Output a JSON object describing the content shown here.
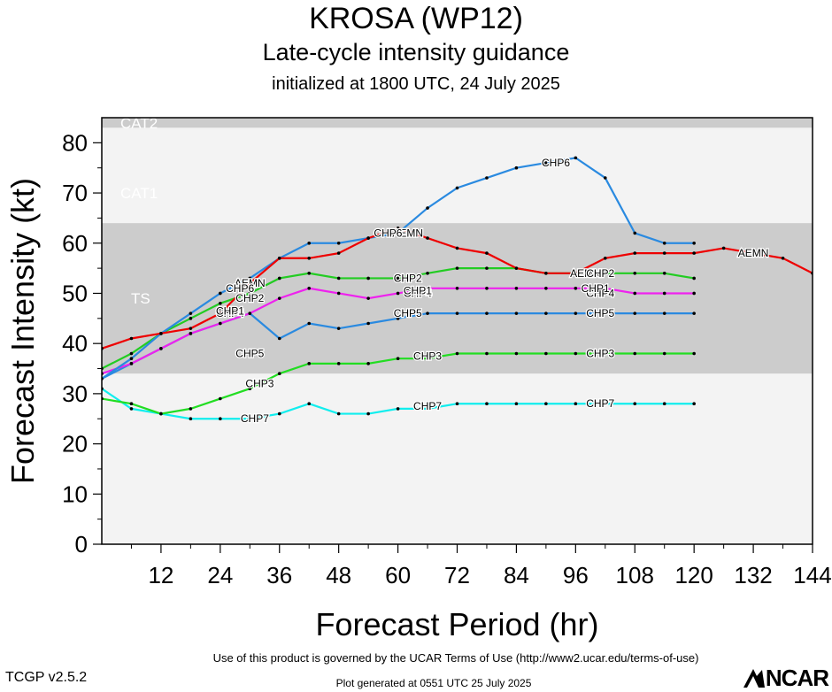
{
  "header": {
    "title": "KROSA (WP12)",
    "subtitle": "Late-cycle intensity guidance",
    "initialized": "initialized at 1800 UTC, 24 July 2025"
  },
  "footer": {
    "terms": "Use of this product is governed by the UCAR Terms of Use (http://www2.ucar.edu/terms-of-use)",
    "version": "TCGP v2.5.2",
    "generated": "Plot generated at 0551 UTC   25 July 2025",
    "logo": "NCAR"
  },
  "colors": {
    "AEMN": "#ee0000",
    "CHP6": "#2a8ae0",
    "CHP2": "#22cc22",
    "CHP4": "#ee22ee",
    "CHP5": "#2a8ae0",
    "CHP3": "#22dd22",
    "CHP7": "#11eeee",
    "band_light": "#f3f3f3",
    "band_dark": "#cccccc"
  },
  "chart_data": {
    "type": "line",
    "xlabel": "Forecast Period (hr)",
    "ylabel": "Forecast Intensity (kt)",
    "xlim": [
      0,
      144
    ],
    "ylim": [
      0,
      85
    ],
    "xticks": [
      12,
      24,
      36,
      48,
      60,
      72,
      84,
      96,
      108,
      120,
      132,
      144
    ],
    "yticks": [
      0,
      10,
      20,
      30,
      40,
      50,
      60,
      70,
      80
    ],
    "bands": [
      {
        "label": "",
        "from": 0,
        "to": 34,
        "shade": "light"
      },
      {
        "label": "TS",
        "from": 34,
        "to": 64,
        "shade": "dark"
      },
      {
        "label": "CAT1",
        "from": 64,
        "to": 83,
        "shade": "light"
      },
      {
        "label": "CAT2",
        "from": 83,
        "to": 85,
        "shade": "dark"
      }
    ],
    "series": [
      {
        "name": "AEMN",
        "x": [
          0,
          6,
          12,
          18,
          24,
          30,
          36,
          42,
          48,
          54,
          60,
          66,
          72,
          78,
          84,
          90,
          96,
          102,
          108,
          114,
          120,
          126,
          132,
          138,
          144
        ],
        "y": [
          39,
          41,
          42,
          43,
          46,
          52,
          57,
          57,
          58,
          61,
          63,
          61,
          59,
          58,
          55,
          54,
          54,
          57,
          58,
          58,
          58,
          59,
          58,
          57,
          54
        ],
        "labels": [
          [
            30,
            52
          ],
          [
            62,
            62
          ],
          [
            98,
            54
          ],
          [
            132,
            58
          ]
        ]
      },
      {
        "name": "CHP6",
        "x": [
          0,
          6,
          12,
          18,
          24,
          30,
          36,
          42,
          48,
          54,
          60,
          66,
          72,
          78,
          84,
          90,
          96,
          102,
          108,
          114,
          120
        ],
        "y": [
          33,
          37,
          42,
          46,
          50,
          53,
          57,
          60,
          60,
          61,
          62,
          67,
          71,
          73,
          75,
          76,
          77,
          73,
          62,
          60,
          60
        ],
        "labels": [
          [
            28,
            51
          ],
          [
            58,
            62
          ],
          [
            92,
            76
          ]
        ]
      },
      {
        "name": "CHP2",
        "x": [
          0,
          6,
          12,
          18,
          24,
          30,
          36,
          42,
          48,
          54,
          60,
          66,
          72,
          78,
          84,
          90,
          96,
          102,
          108,
          114,
          120
        ],
        "y": [
          35,
          38,
          42,
          45,
          48,
          50,
          53,
          54,
          53,
          53,
          53,
          54,
          55,
          55,
          55,
          54,
          54,
          54,
          54,
          54,
          53
        ],
        "labels": [
          [
            30,
            49
          ],
          [
            62,
            53
          ],
          [
            101,
            54
          ]
        ]
      },
      {
        "name": "CHP4",
        "x": [
          0,
          6,
          12,
          18,
          24,
          30,
          36,
          42,
          48,
          54,
          60,
          66,
          72,
          78,
          84,
          90,
          96,
          102,
          108,
          114,
          120
        ],
        "y": [
          34,
          36,
          39,
          42,
          44,
          46,
          49,
          51,
          50,
          49,
          50,
          51,
          51,
          51,
          51,
          51,
          51,
          51,
          50,
          50,
          50
        ],
        "labels": [
          [
            26,
            46
          ],
          [
            64,
            50
          ],
          [
            101,
            50
          ]
        ]
      },
      {
        "name": "CHP1",
        "x": [],
        "y": [],
        "labels": [
          [
            26,
            46.5
          ],
          [
            64,
            50.5
          ],
          [
            100,
            51
          ]
        ]
      },
      {
        "name": "CHP5",
        "x": [
          0,
          6,
          12,
          18,
          24,
          30,
          36,
          42,
          48,
          54,
          60,
          66,
          72,
          78,
          84,
          90,
          96,
          102,
          108,
          114,
          120
        ],
        "y": [
          33,
          36,
          39,
          42,
          44,
          46,
          41,
          44,
          43,
          44,
          45,
          46,
          46,
          46,
          46,
          46,
          46,
          46,
          46,
          46,
          46
        ],
        "labels": [
          [
            30,
            38
          ],
          [
            62,
            46
          ],
          [
            101,
            46
          ]
        ]
      },
      {
        "name": "CHP3",
        "x": [
          0,
          6,
          12,
          18,
          24,
          30,
          36,
          42,
          48,
          54,
          60,
          66,
          72,
          78,
          84,
          90,
          96,
          102,
          108,
          114,
          120
        ],
        "y": [
          29,
          28,
          26,
          27,
          29,
          31,
          34,
          36,
          36,
          36,
          37,
          37,
          38,
          38,
          38,
          38,
          38,
          38,
          38,
          38,
          38
        ],
        "labels": [
          [
            32,
            32
          ],
          [
            66,
            37.5
          ],
          [
            101,
            38
          ]
        ]
      },
      {
        "name": "CHP7",
        "x": [
          0,
          6,
          12,
          18,
          24,
          30,
          36,
          42,
          48,
          54,
          60,
          66,
          72,
          78,
          84,
          90,
          96,
          102,
          108,
          114,
          120
        ],
        "y": [
          31,
          27,
          26,
          25,
          25,
          25,
          26,
          28,
          26,
          26,
          27,
          27,
          28,
          28,
          28,
          28,
          28,
          28,
          28,
          28,
          28
        ],
        "labels": [
          [
            31,
            25
          ],
          [
            66,
            27.5
          ],
          [
            101,
            28
          ]
        ]
      }
    ]
  }
}
